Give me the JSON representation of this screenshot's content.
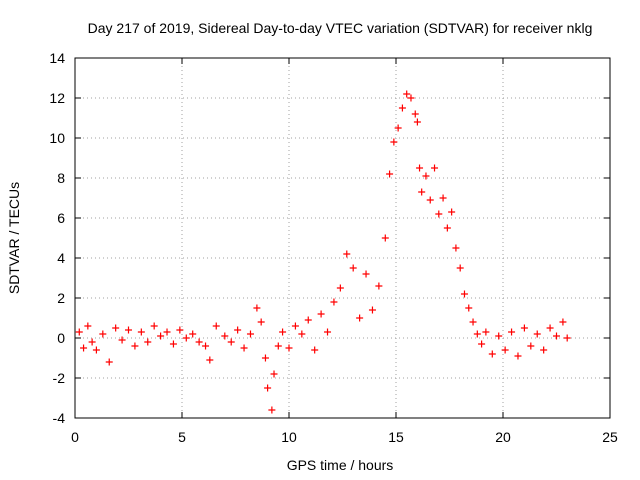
{
  "chart_data": {
    "type": "scatter",
    "title": "Day 217 of 2019, Sidereal Day-to-day VTEC variation (SDTVAR) for receiver nklg",
    "xlabel": "GPS time / hours",
    "ylabel": "SDTVAR / TECUs",
    "xlim": [
      0,
      25
    ],
    "ylim": [
      -4,
      14
    ],
    "xticks": [
      "0",
      "5",
      "10",
      "15",
      "20",
      "25"
    ],
    "yticks": [
      "-4",
      "-2",
      "0",
      "2",
      "4",
      "6",
      "8",
      "10",
      "12",
      "14"
    ],
    "grid": true,
    "marker": "+",
    "color": "#ff0000",
    "series": [
      {
        "name": "SDTVAR",
        "x": [
          0.2,
          0.4,
          0.6,
          0.8,
          1.0,
          1.3,
          1.6,
          1.9,
          2.2,
          2.5,
          2.8,
          3.1,
          3.4,
          3.7,
          4.0,
          4.3,
          4.6,
          4.9,
          5.2,
          5.5,
          5.8,
          6.1,
          6.3,
          6.6,
          7.0,
          7.3,
          7.6,
          7.9,
          8.2,
          8.5,
          8.7,
          8.9,
          9.0,
          9.2,
          9.3,
          9.5,
          9.7,
          10.0,
          10.3,
          10.6,
          10.9,
          11.2,
          11.5,
          11.8,
          12.1,
          12.4,
          12.7,
          13.0,
          13.3,
          13.6,
          13.9,
          14.2,
          14.5,
          14.7,
          14.9,
          15.1,
          15.3,
          15.5,
          15.7,
          15.9,
          16.0,
          16.1,
          16.2,
          16.4,
          16.6,
          16.8,
          17.0,
          17.2,
          17.4,
          17.6,
          17.8,
          18.0,
          18.2,
          18.4,
          18.6,
          18.8,
          19.0,
          19.2,
          19.5,
          19.8,
          20.1,
          20.4,
          20.7,
          21.0,
          21.3,
          21.6,
          21.9,
          22.2,
          22.5,
          22.8,
          23.0
        ],
        "values": [
          0.3,
          -0.5,
          0.6,
          -0.2,
          -0.6,
          0.2,
          -1.2,
          0.5,
          -0.1,
          0.4,
          -0.4,
          0.3,
          -0.2,
          0.6,
          0.1,
          0.3,
          -0.3,
          0.4,
          0.0,
          0.2,
          -0.2,
          -0.4,
          -1.1,
          0.6,
          0.1,
          -0.2,
          0.4,
          -0.5,
          0.2,
          1.5,
          0.8,
          -1.0,
          -2.5,
          -3.6,
          -1.8,
          -0.4,
          0.3,
          -0.5,
          0.6,
          0.2,
          0.9,
          -0.6,
          1.2,
          0.3,
          1.8,
          2.5,
          4.2,
          3.5,
          1.0,
          3.2,
          1.4,
          2.6,
          5.0,
          8.2,
          9.8,
          10.5,
          11.5,
          12.2,
          12.0,
          11.2,
          10.8,
          8.5,
          7.3,
          8.1,
          6.9,
          8.5,
          6.2,
          7.0,
          5.5,
          6.3,
          4.5,
          3.5,
          2.2,
          1.5,
          0.8,
          0.2,
          -0.3,
          0.3,
          -0.8,
          0.1,
          -0.6,
          0.3,
          -0.9,
          0.5,
          -0.4,
          0.2,
          -0.6,
          0.5,
          0.1,
          0.8,
          0.0
        ]
      }
    ]
  }
}
